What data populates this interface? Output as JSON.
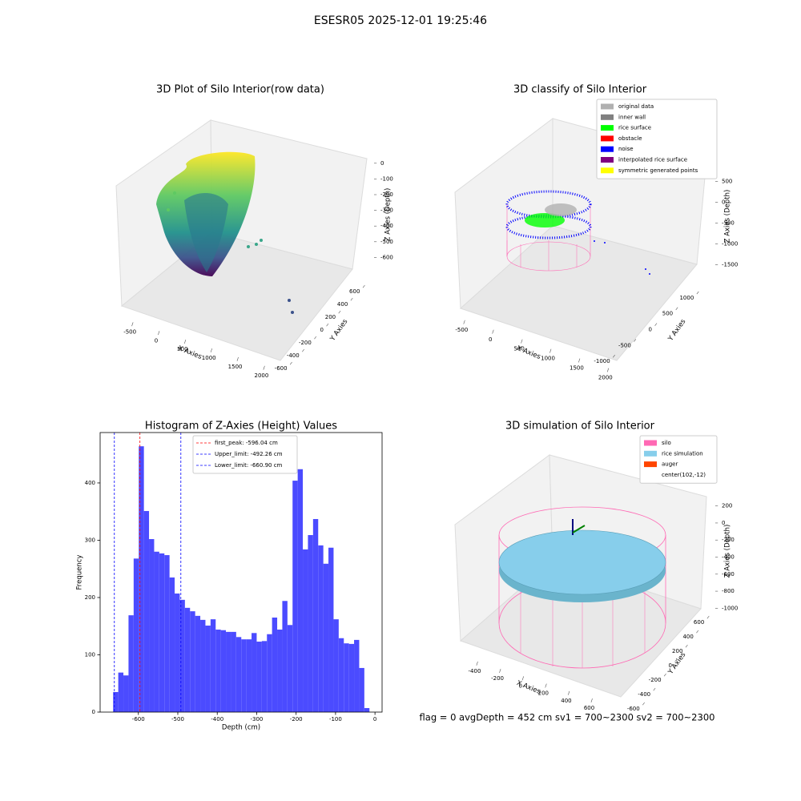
{
  "title": "ESESR05 2025-12-01 19:25:46",
  "footer": "flag = 0     avgDepth = 452 cm  sv1 = 700~2300  sv2 = 700~2300",
  "chart_data": [
    {
      "type": "surface3d",
      "title": "3D Plot of Silo Interior(row data)",
      "xlabel": "X Axies",
      "ylabel": "Y Axies",
      "zlabel": "Z Axies (Depth)",
      "xlim": [
        -700,
        2100
      ],
      "xticks": [
        -500,
        0,
        500,
        1000,
        1500,
        2000
      ],
      "ylim": [
        -700,
        700
      ],
      "yticks": [
        -600,
        -400,
        -200,
        0,
        200,
        400,
        600
      ],
      "zlim": [
        -700,
        50
      ],
      "zticks": [
        -600,
        -500,
        -400,
        -300,
        -200,
        -100,
        0
      ]
    },
    {
      "type": "surface3d",
      "title": "3D classify of Silo Interior",
      "xlabel": "X Axies",
      "ylabel": "Y Axies",
      "zlabel": "Z Axies (Depth)",
      "xlim": [
        -700,
        2100
      ],
      "xticks": [
        -500,
        0,
        500,
        1000,
        1500,
        2000
      ],
      "ylim": [
        -1300,
        1300
      ],
      "yticks": [
        -1000,
        -500,
        0,
        500,
        1000
      ],
      "zlim": [
        -1800,
        700
      ],
      "zticks": [
        -1500,
        -1000,
        -500,
        0,
        500
      ],
      "legend_entries": [
        {
          "name": "original data",
          "color": "#b0b0b0"
        },
        {
          "name": "inner wall",
          "color": "#808080"
        },
        {
          "name": "rice surface",
          "color": "#00ff00"
        },
        {
          "name": "obstacle",
          "color": "#ff0000"
        },
        {
          "name": "noise",
          "color": "#0000ff"
        },
        {
          "name": "interpolated rice surface",
          "color": "#800080"
        },
        {
          "name": "symmetric generated points",
          "color": "#ffff00"
        }
      ]
    },
    {
      "type": "histogram",
      "title": "Histogram of Z-Axies (Height) Values",
      "xlabel": "Depth (cm)",
      "ylabel": "Frequency",
      "color": "#4b4bff",
      "bins": [
        -664,
        -651,
        -638,
        -625,
        -612,
        -599,
        -586,
        -573,
        -560,
        -547,
        -534,
        -521,
        -508,
        -495,
        -482,
        -469,
        -456,
        -443,
        -430,
        -417,
        -404,
        -391,
        -378,
        -365,
        -352,
        -339,
        -326,
        -313,
        -300,
        -287,
        -274,
        -261,
        -248,
        -235,
        -222,
        -209,
        -196,
        -183,
        -170,
        -157,
        -144,
        -131,
        -118,
        -105,
        -92,
        -79,
        -66,
        -53,
        -40,
        -27,
        -14
      ],
      "values": [
        35,
        69,
        64,
        169,
        268,
        464,
        351,
        302,
        280,
        277,
        274,
        235,
        207,
        196,
        182,
        176,
        168,
        161,
        151,
        162,
        144,
        143,
        140,
        140,
        131,
        127,
        127,
        138,
        123,
        124,
        136,
        165,
        144,
        194,
        152,
        404,
        424,
        284,
        309,
        337,
        291,
        259,
        287,
        162,
        129,
        120,
        119,
        126,
        77,
        7
      ],
      "xlim": [
        -697,
        18
      ],
      "xticks": [
        -600,
        -500,
        -400,
        -300,
        -200,
        -100,
        0
      ],
      "ylim": [
        0,
        488
      ],
      "yticks": [
        0,
        100,
        200,
        300,
        400
      ],
      "legend": "upper center",
      "vlines": [
        {
          "value": -596.04,
          "label": "first_peak: -596.04 cm",
          "color": "#ff0000"
        },
        {
          "value": -492.26,
          "label": "Upper_limit: -492.26 cm",
          "color": "#0000ff"
        },
        {
          "value": -660.9,
          "label": "Lower_limit: -660.90 cm",
          "color": "#0000ff"
        }
      ]
    },
    {
      "type": "surface3d",
      "title": "3D simulation of Silo Interior",
      "xlabel": "X Axies",
      "ylabel": "Y Axies",
      "zlabel": "Z Axies (Depth)",
      "xlim": [
        -550,
        750
      ],
      "xticks": [
        -400,
        -200,
        0,
        200,
        400,
        600
      ],
      "ylim": [
        -700,
        700
      ],
      "yticks": [
        -600,
        -400,
        -200,
        0,
        200,
        400,
        600
      ],
      "zlim": [
        -1100,
        300
      ],
      "zticks": [
        -1000,
        -800,
        -600,
        -400,
        -200,
        0,
        200
      ],
      "legend_entries": [
        {
          "name": "silo",
          "color": "#ff69b4"
        },
        {
          "name": "rice simulation",
          "color": "#87ceeb"
        },
        {
          "name": "auger",
          "color": "#ff4500"
        },
        {
          "name": "center(102,-12)"
        }
      ]
    }
  ]
}
